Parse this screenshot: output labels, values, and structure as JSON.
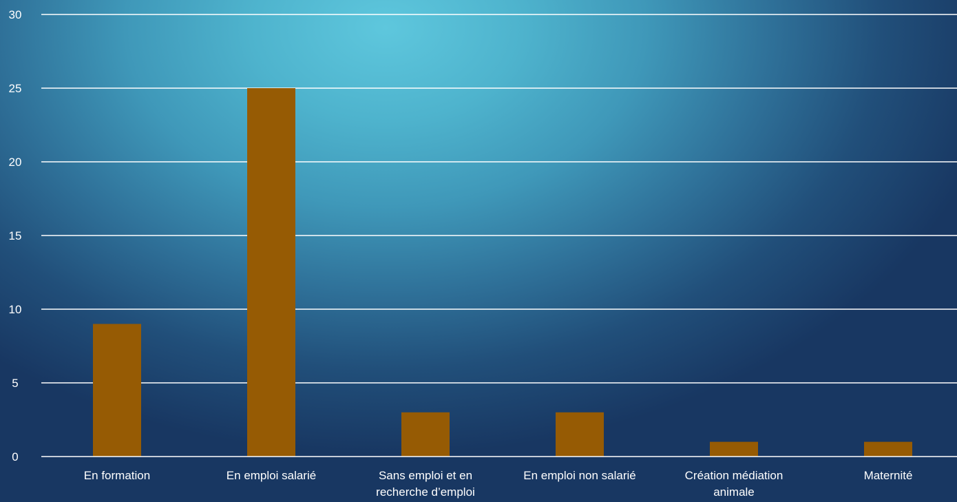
{
  "chart_data": {
    "type": "bar",
    "categories": [
      [
        "En formation"
      ],
      [
        "En emploi salarié"
      ],
      [
        "Sans emploi et en",
        "recherche d’emploi"
      ],
      [
        "En emploi non salarié"
      ],
      [
        "Création médiation",
        "animale"
      ],
      [
        "Maternité"
      ]
    ],
    "values": [
      9,
      25,
      3,
      3,
      1,
      1
    ],
    "ylim": [
      0,
      30
    ],
    "yticks": [
      0,
      5,
      10,
      15,
      20,
      25,
      30
    ],
    "grid": true,
    "title": "",
    "xlabel": "",
    "ylabel": "",
    "colors": {
      "bar": "#965b04",
      "grid": "#ffffff",
      "text": "#ffffff"
    }
  }
}
